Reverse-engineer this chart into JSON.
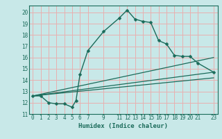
{
  "xlabel": "Humidex (Indice chaleur)",
  "bg_color": "#c8e8e8",
  "grid_color": "#e8b0b0",
  "line_color": "#1a6b5a",
  "xlim": [
    -0.5,
    23.5
  ],
  "ylim": [
    11,
    20.6
  ],
  "xticks": [
    0,
    1,
    2,
    3,
    4,
    5,
    6,
    7,
    9,
    11,
    12,
    13,
    14,
    15,
    16,
    17,
    18,
    19,
    20,
    21,
    23
  ],
  "yticks": [
    11,
    12,
    13,
    14,
    15,
    16,
    17,
    18,
    19,
    20
  ],
  "series1": [
    [
      0,
      12.6
    ],
    [
      1,
      12.6
    ],
    [
      2,
      12.0
    ],
    [
      3,
      11.9
    ],
    [
      4,
      11.9
    ],
    [
      5,
      11.6
    ],
    [
      5.5,
      12.2
    ],
    [
      6,
      14.5
    ],
    [
      7,
      16.6
    ],
    [
      9,
      18.3
    ],
    [
      11,
      19.5
    ],
    [
      12,
      20.2
    ],
    [
      13,
      19.4
    ],
    [
      14,
      19.2
    ],
    [
      15,
      19.1
    ],
    [
      16,
      17.5
    ],
    [
      17,
      17.2
    ],
    [
      18,
      16.2
    ],
    [
      19,
      16.1
    ],
    [
      20,
      16.1
    ],
    [
      21,
      15.5
    ],
    [
      23,
      14.7
    ]
  ],
  "series2": [
    [
      0,
      12.6
    ],
    [
      23,
      16.0
    ]
  ],
  "series3": [
    [
      0,
      12.6
    ],
    [
      23,
      14.7
    ]
  ],
  "series4": [
    [
      0,
      12.6
    ],
    [
      23,
      14.2
    ]
  ]
}
